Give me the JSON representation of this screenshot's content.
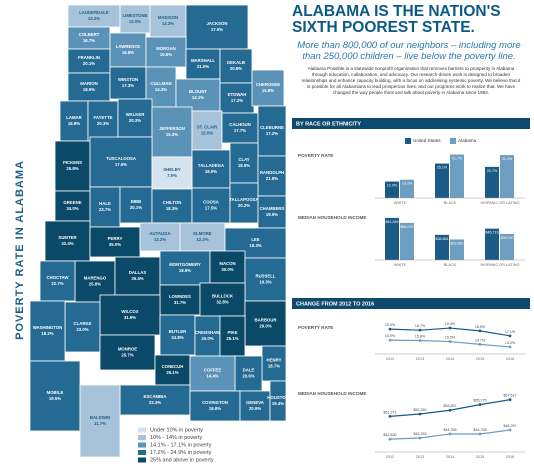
{
  "title": "POVERTY RATE IN ALABAMA",
  "header": {
    "title": "ALABAMA IS THE NATION'S SIXTH POOREST STATE.",
    "subtitle": "More than 800,000 of our neighbors – including more than 250,000 children – live below the poverty line.",
    "body": "Alabama Possible is a statewide nonprofit organization that removes barriers to prosperity in Alabama through education, collaboration, and advocacy. Our research-driven work is designed to broaden relationships and enhance capacity building, with a focus on addressing systemic poverty. We believe that it is possible for all Alabamians to lead prosperous lives, and our programs work to realize that. We have changed the way people think and talk about poverty in Alabama since 1993."
  },
  "sections": [
    "BY RACE OR ETHNICITY",
    "CHANGE FROM 2012 TO 2016"
  ],
  "map": {
    "legend": [
      {
        "label": "Under 10% in poverty",
        "color": "#d4e3ee",
        "range": [
          null,
          9.9
        ]
      },
      {
        "label": "10% - 14% in poverty",
        "color": "#a6c3d9",
        "range": [
          10,
          14
        ]
      },
      {
        "label": "14.1% - 17.1% in poverty",
        "color": "#5b92b8",
        "range": [
          14.1,
          17.1
        ]
      },
      {
        "label": "17.2% - 24.9% in poverty",
        "color": "#246a92",
        "range": [
          17.2,
          24.9
        ]
      },
      {
        "label": "25% and above in poverty",
        "color": "#0b4969",
        "range": [
          25,
          null
        ]
      }
    ],
    "counties": [
      {
        "name": "LAUDERDALE",
        "value": 13.2,
        "label": "13.2%"
      },
      {
        "name": "LIMESTONE",
        "value": 12.0,
        "label": "12.0%"
      },
      {
        "name": "MADISON",
        "value": 13.3,
        "label": "13.3%"
      },
      {
        "name": "JACKSON",
        "value": 17.5,
        "label": "17.5%"
      },
      {
        "name": "COLBERT",
        "value": 16.7,
        "label": "16.7%"
      },
      {
        "name": "FRANKLIN",
        "value": 20.1,
        "label": "20.1%"
      },
      {
        "name": "LAWRENCE",
        "value": 16.8,
        "label": "16.8%"
      },
      {
        "name": "MORGAN",
        "value": 15.6,
        "label": "15.6%"
      },
      {
        "name": "MARSHALL",
        "value": 21.0,
        "label": "21.0%"
      },
      {
        "name": "DEKALB",
        "value": 20.8,
        "label": "20.8%"
      },
      {
        "name": "MARION",
        "value": 18.5,
        "label": "18.5%"
      },
      {
        "name": "WINSTON",
        "value": 17.3,
        "label": "17.3%"
      },
      {
        "name": "CULLMAN",
        "value": 14.3,
        "label": "14.3%"
      },
      {
        "name": "BLOUNT",
        "value": 14.1,
        "label": "14.1%"
      },
      {
        "name": "ETOWAH",
        "value": 17.2,
        "label": "17.2%"
      },
      {
        "name": "CHEROKEE",
        "value": 15.8,
        "label": "15.8%"
      },
      {
        "name": "LAMAR",
        "value": 18.8,
        "label": "18.8%"
      },
      {
        "name": "FAYETTE",
        "value": 20.3,
        "label": "20.3%"
      },
      {
        "name": "WALKER",
        "value": 20.3,
        "label": "20.3%"
      },
      {
        "name": "JEFFERSON",
        "value": 15.3,
        "label": "15.3%"
      },
      {
        "name": "ST. CLAIR",
        "value": 12.0,
        "label": "12.0%"
      },
      {
        "name": "CALHOUN",
        "value": 17.7,
        "label": "17.7%"
      },
      {
        "name": "CLEBURNE",
        "value": 17.2,
        "label": "17.2%"
      },
      {
        "name": "PICKENS",
        "value": 25.8,
        "label": "25.8%"
      },
      {
        "name": "TUSCALOOSA",
        "value": 17.6,
        "label": "17.6%"
      },
      {
        "name": "TALLADEGA",
        "value": 18.0,
        "label": "18.0%"
      },
      {
        "name": "CLAY",
        "value": 18.9,
        "label": "18.9%"
      },
      {
        "name": "RANDOLPH",
        "value": 21.8,
        "label": "21.8%"
      },
      {
        "name": "SHELBY",
        "value": 7.9,
        "label": "7.9%"
      },
      {
        "name": "GREENE",
        "value": 34.0,
        "label": "34.0%"
      },
      {
        "name": "HALE",
        "value": 23.7,
        "label": "23.7%"
      },
      {
        "name": "BIBB",
        "value": 20.1,
        "label": "20.1%"
      },
      {
        "name": "CHILTON",
        "value": 18.3,
        "label": "18.3%"
      },
      {
        "name": "COOSA",
        "value": 17.5,
        "label": "17.5%"
      },
      {
        "name": "TALLAPOOSA",
        "value": 20.2,
        "label": "20.2%"
      },
      {
        "name": "CHAMBERS",
        "value": 19.9,
        "label": "19.9%"
      },
      {
        "name": "SUMTER",
        "value": 32.4,
        "label": "32.4%"
      },
      {
        "name": "PERRY",
        "value": 35.0,
        "label": "35.0%"
      },
      {
        "name": "AUTAUGA",
        "value": 13.2,
        "label": "13.2%"
      },
      {
        "name": "ELMORE",
        "value": 12.2,
        "label": "12.2%"
      },
      {
        "name": "LEE",
        "value": 18.3,
        "label": "18.3%"
      },
      {
        "name": "MARENGO",
        "value": 25.8,
        "label": "25.8%"
      },
      {
        "name": "DALLAS",
        "value": 35.4,
        "label": "35.4%"
      },
      {
        "name": "MONTGOMERY",
        "value": 18.6,
        "label": "18.6%"
      },
      {
        "name": "MACON",
        "value": 30.0,
        "label": "30.0%"
      },
      {
        "name": "RUSSELL",
        "value": 19.3,
        "label": "19.3%"
      },
      {
        "name": "CHOCTAW",
        "value": 22.7,
        "label": "22.7%"
      },
      {
        "name": "LOWNDES",
        "value": 31.7,
        "label": "31.7%"
      },
      {
        "name": "BULLOCK",
        "value": 32.8,
        "label": "32.8%"
      },
      {
        "name": "WILCOX",
        "value": 31.9,
        "label": "31.9%"
      },
      {
        "name": "BARBOUR",
        "value": 29.0,
        "label": "29.0%"
      },
      {
        "name": "CLARKE",
        "value": 23.0,
        "label": "23.0%"
      },
      {
        "name": "BUTLER",
        "value": 24.8,
        "label": "24.8%"
      },
      {
        "name": "CRENSHAW",
        "value": 20.0,
        "label": "20.0%"
      },
      {
        "name": "PIKE",
        "value": 25.1,
        "label": "25.1%"
      },
      {
        "name": "HENRY",
        "value": 18.7,
        "label": "18.7%"
      },
      {
        "name": "MONROE",
        "value": 25.7,
        "label": "25.7%"
      },
      {
        "name": "DALE",
        "value": 20.6,
        "label": "20.6%"
      },
      {
        "name": "WASHINGTON",
        "value": 18.2,
        "label": "18.2%"
      },
      {
        "name": "CONECUH",
        "value": 25.1,
        "label": "25.1%"
      },
      {
        "name": "COFFEE",
        "value": 14.4,
        "label": "14.4%"
      },
      {
        "name": "ESCAMBIA",
        "value": 23.3,
        "label": "23.3%"
      },
      {
        "name": "COVINGTON",
        "value": 19.8,
        "label": "19.8%"
      },
      {
        "name": "GENEVA",
        "value": 20.9,
        "label": "20.9%"
      },
      {
        "name": "HOUSTON",
        "value": 19.4,
        "label": "19.4%"
      },
      {
        "name": "MOBILE",
        "value": 19.5,
        "label": "19.5%"
      },
      {
        "name": "BALDWIN",
        "value": 11.7,
        "label": "11.7%"
      }
    ]
  },
  "chart_data": [
    {
      "type": "bar",
      "title": "POVERTY RATE",
      "legend": "top-right",
      "categories": [
        "WHITE",
        "BLACK",
        "HISPANIC OR LATINO"
      ],
      "series": [
        {
          "name": "United States",
          "color": "#1c5a86",
          "values": [
            12.0,
            25.1,
            22.7
          ],
          "value_labels": [
            "12.0%",
            "25.1%",
            "22.7%"
          ]
        },
        {
          "name": "Alabama",
          "color": "#6d9dc1",
          "values": [
            13.3,
            31.7,
            31.3
          ],
          "value_labels": [
            "13.3%",
            "31.7%",
            "31.3%"
          ]
        }
      ],
      "ylim": [
        0,
        35
      ]
    },
    {
      "type": "bar",
      "title": "MEDIAN HOUSEHOLD INCOME",
      "categories": [
        "WHITE",
        "BLACK",
        "HISPANIC OR LATINO"
      ],
      "series": [
        {
          "color": "#1c5a86",
          "values": [
            61349,
            36651,
            45719
          ],
          "value_labels": [
            "$61,349",
            "$36,651",
            "$45,719"
          ]
        },
        {
          "color": "#6d9dc1",
          "values": [
            54076,
            29962,
            38000
          ],
          "value_labels": [
            "$54,076",
            "$29,962",
            "$38,000"
          ]
        }
      ],
      "ylim": [
        0,
        70000
      ]
    },
    {
      "type": "line",
      "title": "POVERTY RATE",
      "categories": [
        "2012",
        "2013",
        "2014",
        "2015",
        "2016"
      ],
      "series": [
        {
          "color": "#1c5a86",
          "values": [
            19.0,
            18.7,
            19.3,
            18.5,
            17.1
          ],
          "value_labels": [
            "19.0%",
            "18.7%",
            "19.3%",
            "18.5%",
            "17.1%"
          ]
        },
        {
          "color": "#6d9dc1",
          "values": [
            15.9,
            15.8,
            15.5,
            14.7,
            14.0
          ],
          "value_labels": [
            "15.9%",
            "15.8%",
            "15.5%",
            "14.7%",
            "14.0%"
          ]
        }
      ],
      "ylim": [
        12,
        21
      ]
    },
    {
      "type": "line",
      "title": "MEDIAN HOUSEHOLD INCOME",
      "categories": [
        "2012",
        "2013",
        "2014",
        "2015",
        "2016"
      ],
      "series": [
        {
          "color": "#1c5a86",
          "values": [
            51371,
            52250,
            53657,
            55775,
            57617
          ],
          "value_labels": [
            "$51,371",
            "$52,250",
            "$53,657",
            "$55,775",
            "$57,617"
          ]
        },
        {
          "color": "#6d9dc1",
          "values": [
            42830,
            43253,
            44765,
            44758,
            46257
          ],
          "value_labels": [
            "$42,830",
            "$43,253",
            "$44,765",
            "$44,758",
            "$46,257"
          ]
        }
      ],
      "ylim": [
        38000,
        62000
      ]
    }
  ]
}
